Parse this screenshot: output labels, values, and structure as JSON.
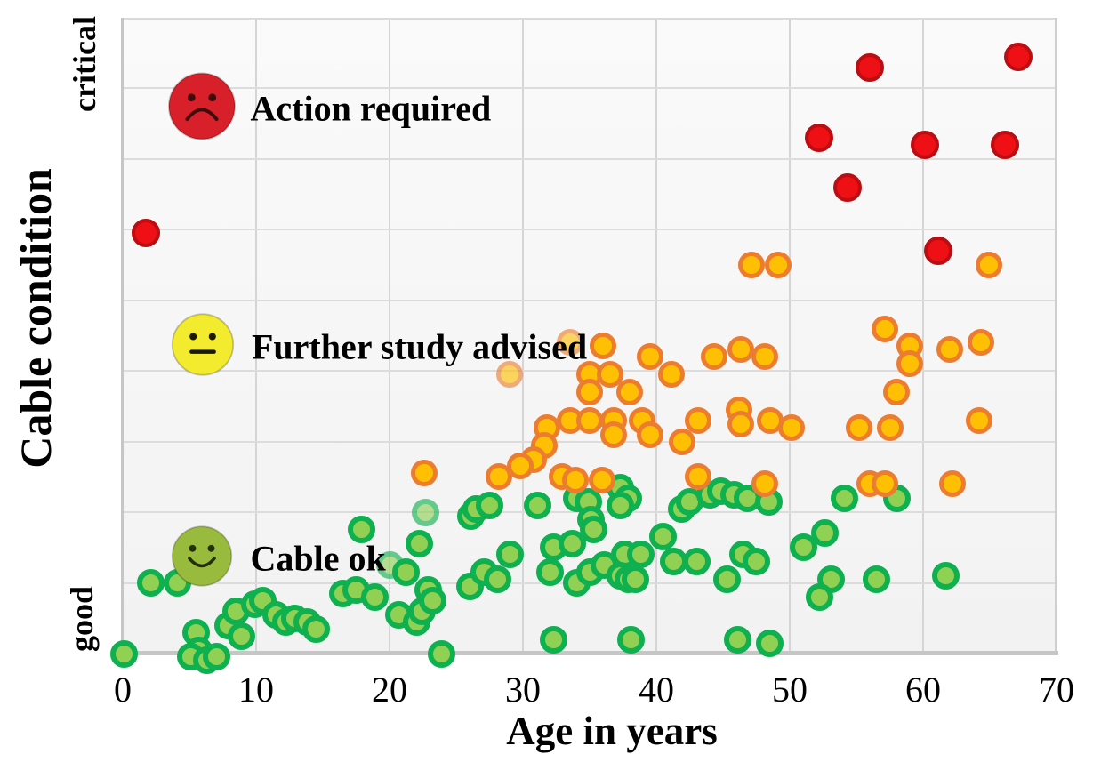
{
  "chart_data": {
    "type": "scatter",
    "x_label": "Age in years",
    "y_label": "Cable condition",
    "x_ticks": [
      0,
      10,
      20,
      30,
      40,
      50,
      60,
      70
    ],
    "x_range": [
      0,
      70
    ],
    "y_range": [
      0,
      9
    ],
    "y_tick_labels": {
      "top": "critical",
      "bottom": "good"
    },
    "grid": true,
    "legend_position": "inside-left",
    "colors": {
      "plot_background": "#f4f4f4",
      "gridline": "#d8d8d8",
      "axis": "#c6c6c6",
      "green_fill": "#90D053",
      "green_stroke": "#0FB04F",
      "orange_fill": "#FFC003",
      "orange_stroke": "#EC7D2E",
      "red_fill": "#EE1014",
      "red_stroke": "#BB0E12"
    },
    "legend": [
      {
        "label": "Action required",
        "face": "frown",
        "face_fill": "#D7202A",
        "face_feature": "#3f0c0e",
        "x": 5.9,
        "y": 7.72
      },
      {
        "label": "Further study advised",
        "face": "neutral",
        "face_fill": "#F3EB2D",
        "face_feature": "#1a1a08",
        "x": 6.0,
        "y": 4.34
      },
      {
        "label": "Cable ok",
        "face": "smile",
        "face_fill": "#98BA3D",
        "face_feature": "#23300a",
        "x": 5.9,
        "y": 1.35
      }
    ],
    "series": [
      {
        "key": "cable_ok",
        "name": "Cable ok",
        "condition": "good",
        "points": [
          [
            0.1,
            0.0
          ],
          [
            2.1,
            1.0
          ],
          [
            4.1,
            1.0
          ],
          [
            5.5,
            0.3
          ],
          [
            5.7,
            0.05
          ],
          [
            5.1,
            -0.05
          ],
          [
            6.3,
            -0.1
          ],
          [
            7.0,
            -0.05
          ],
          [
            7.9,
            0.4
          ],
          [
            8.5,
            0.6
          ],
          [
            8.9,
            0.25
          ],
          [
            9.9,
            0.7
          ],
          [
            10.5,
            0.75
          ],
          [
            11.5,
            0.55
          ],
          [
            12.2,
            0.45
          ],
          [
            12.9,
            0.5
          ],
          [
            13.8,
            0.45
          ],
          [
            14.5,
            0.35
          ],
          [
            16.5,
            0.85
          ],
          [
            17.5,
            0.9
          ],
          [
            17.9,
            1.75
          ],
          [
            18.9,
            0.8
          ],
          [
            21.2,
            1.15
          ],
          [
            20.7,
            0.55
          ],
          [
            22.0,
            0.45
          ],
          [
            22.4,
            0.6
          ],
          [
            22.9,
            0.9
          ],
          [
            23.2,
            0.75
          ],
          [
            22.2,
            1.55
          ],
          [
            23.9,
            0.0
          ],
          [
            26.1,
            1.95
          ],
          [
            26.5,
            2.05
          ],
          [
            27.5,
            2.1
          ],
          [
            31.1,
            2.1
          ],
          [
            34.0,
            2.2
          ],
          [
            34.9,
            2.15
          ],
          [
            37.3,
            2.35
          ],
          [
            37.9,
            2.2
          ],
          [
            35.1,
            1.9
          ],
          [
            35.3,
            1.75
          ],
          [
            37.3,
            2.1
          ],
          [
            41.9,
            2.05
          ],
          [
            42.5,
            2.15
          ],
          [
            44.0,
            2.25
          ],
          [
            44.8,
            2.3
          ],
          [
            45.8,
            2.25
          ],
          [
            46.8,
            2.2
          ],
          [
            48.4,
            2.15
          ],
          [
            26.0,
            0.95
          ],
          [
            27.1,
            1.15
          ],
          [
            28.1,
            1.05
          ],
          [
            29.0,
            1.4
          ],
          [
            32.0,
            1.15
          ],
          [
            32.3,
            1.5
          ],
          [
            33.7,
            1.55
          ],
          [
            34.0,
            1.0
          ],
          [
            35.0,
            1.15
          ],
          [
            36.1,
            1.25
          ],
          [
            37.6,
            1.4
          ],
          [
            38.8,
            1.4
          ],
          [
            37.3,
            1.1
          ],
          [
            37.9,
            1.05
          ],
          [
            38.4,
            1.05
          ],
          [
            40.5,
            1.65
          ],
          [
            41.3,
            1.3
          ],
          [
            43.0,
            1.3
          ],
          [
            45.3,
            1.05
          ],
          [
            32.3,
            0.2
          ],
          [
            38.1,
            0.2
          ],
          [
            46.1,
            0.2
          ],
          [
            48.5,
            0.15
          ],
          [
            46.5,
            1.4
          ],
          [
            47.5,
            1.3
          ],
          [
            51.0,
            1.5
          ],
          [
            52.6,
            1.7
          ],
          [
            53.1,
            1.05
          ],
          [
            52.2,
            0.8
          ],
          [
            56.5,
            1.05
          ],
          [
            61.7,
            1.1
          ],
          [
            54.1,
            2.2
          ],
          [
            58.0,
            2.2
          ]
        ],
        "faded_points": [
          [
            20.0,
            1.25
          ],
          [
            22.7,
            2.0
          ]
        ]
      },
      {
        "key": "further_study",
        "name": "Further study advised",
        "condition": "intermediate",
        "points": [
          [
            47.1,
            5.5
          ],
          [
            49.1,
            5.5
          ],
          [
            64.9,
            5.5
          ],
          [
            57.1,
            4.6
          ],
          [
            59.0,
            4.35
          ],
          [
            59.0,
            4.1
          ],
          [
            62.0,
            4.3
          ],
          [
            64.3,
            4.4
          ],
          [
            36.0,
            4.35
          ],
          [
            35.0,
            3.95
          ],
          [
            36.5,
            3.95
          ],
          [
            35.0,
            3.7
          ],
          [
            38.0,
            3.7
          ],
          [
            39.5,
            4.2
          ],
          [
            41.1,
            3.95
          ],
          [
            44.3,
            4.2
          ],
          [
            46.3,
            4.3
          ],
          [
            48.1,
            4.2
          ],
          [
            33.5,
            3.3
          ],
          [
            35.0,
            3.3
          ],
          [
            36.8,
            3.3
          ],
          [
            38.9,
            3.3
          ],
          [
            43.1,
            3.3
          ],
          [
            31.8,
            3.2
          ],
          [
            31.6,
            2.95
          ],
          [
            36.8,
            3.1
          ],
          [
            39.5,
            3.1
          ],
          [
            41.9,
            3.0
          ],
          [
            46.2,
            3.45
          ],
          [
            46.3,
            3.25
          ],
          [
            48.5,
            3.3
          ],
          [
            50.1,
            3.2
          ],
          [
            58.0,
            3.7
          ],
          [
            55.2,
            3.2
          ],
          [
            57.5,
            3.2
          ],
          [
            64.2,
            3.3
          ],
          [
            30.8,
            2.75
          ],
          [
            29.8,
            2.65
          ],
          [
            28.2,
            2.5
          ],
          [
            32.9,
            2.5
          ],
          [
            33.9,
            2.45
          ],
          [
            35.9,
            2.45
          ],
          [
            22.6,
            2.55
          ],
          [
            43.1,
            2.5
          ],
          [
            48.1,
            2.4
          ],
          [
            56.0,
            2.4
          ],
          [
            57.1,
            2.4
          ],
          [
            62.2,
            2.4
          ]
        ],
        "faded_points": [
          [
            33.5,
            4.4
          ],
          [
            29.0,
            3.95
          ]
        ]
      },
      {
        "key": "action_required",
        "name": "Action required",
        "condition": "critical",
        "points": [
          [
            1.7,
            5.95
          ],
          [
            52.2,
            7.3
          ],
          [
            54.3,
            6.6
          ],
          [
            56.0,
            8.3
          ],
          [
            60.1,
            7.2
          ],
          [
            61.1,
            5.7
          ],
          [
            66.1,
            7.2
          ],
          [
            67.1,
            8.45
          ]
        ],
        "faded_points": []
      }
    ]
  }
}
